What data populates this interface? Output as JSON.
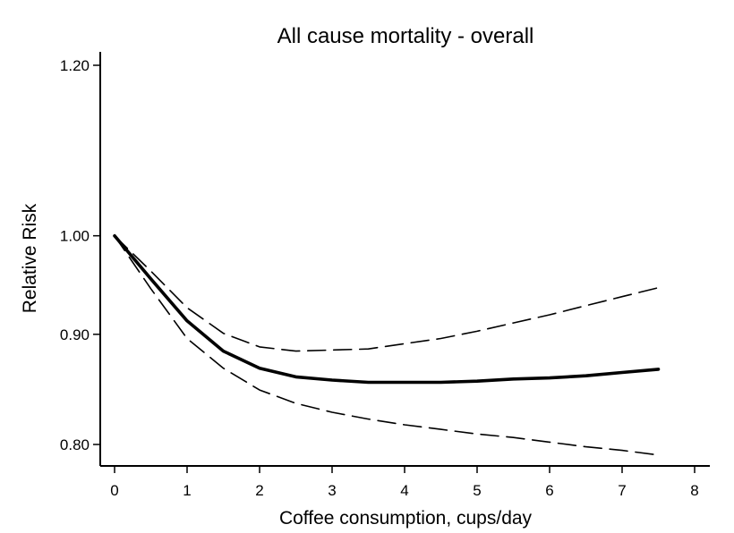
{
  "chart_data": {
    "type": "line",
    "title": "All cause mortality - overall",
    "xlabel": "Coffee consumption, cups/day",
    "ylabel": "Relative Risk",
    "xlim": [
      0,
      8
    ],
    "ylim": [
      0.8,
      1.2
    ],
    "y_scale": "log",
    "x_ticks": [
      {
        "value": 0,
        "label": "0"
      },
      {
        "value": 1,
        "label": "1"
      },
      {
        "value": 2,
        "label": "2"
      },
      {
        "value": 3,
        "label": "3"
      },
      {
        "value": 4,
        "label": "4"
      },
      {
        "value": 5,
        "label": "5"
      },
      {
        "value": 6,
        "label": "6"
      },
      {
        "value": 7,
        "label": "7"
      },
      {
        "value": 8,
        "label": "8"
      }
    ],
    "y_ticks": [
      {
        "value": 0.8,
        "label": "0.80"
      },
      {
        "value": 0.9,
        "label": "0.90"
      },
      {
        "value": 1.0,
        "label": "1.00"
      },
      {
        "value": 1.2,
        "label": "1.20"
      }
    ],
    "grid": false,
    "legend": "none",
    "series": [
      {
        "style": "solid-thick",
        "color": "#000000",
        "x": [
          0,
          0.5,
          1,
          1.5,
          2,
          2.5,
          3,
          3.5,
          4,
          4.5,
          5,
          5.5,
          6,
          6.5,
          7,
          7.5
        ],
        "y": [
          1.0,
          0.955,
          0.913,
          0.884,
          0.868,
          0.86,
          0.857,
          0.855,
          0.855,
          0.855,
          0.856,
          0.858,
          0.859,
          0.861,
          0.864,
          0.867
        ]
      },
      {
        "style": "dashed",
        "color": "#000000",
        "x": [
          0,
          0.5,
          1,
          1.5,
          2,
          2.5,
          3,
          3.5,
          4,
          4.5,
          5,
          5.5,
          6,
          6.5,
          7,
          7.5
        ],
        "y": [
          1.0,
          0.963,
          0.926,
          0.901,
          0.888,
          0.884,
          0.885,
          0.886,
          0.891,
          0.896,
          0.903,
          0.911,
          0.919,
          0.928,
          0.937,
          0.946
        ]
      },
      {
        "style": "dashed",
        "color": "#000000",
        "x": [
          0,
          0.5,
          1,
          1.5,
          2,
          2.5,
          3,
          3.5,
          4,
          4.5,
          5,
          5.5,
          6,
          6.5,
          7,
          7.5
        ],
        "y": [
          1.0,
          0.945,
          0.896,
          0.868,
          0.848,
          0.836,
          0.828,
          0.822,
          0.817,
          0.813,
          0.809,
          0.806,
          0.802,
          0.798,
          0.795,
          0.791
        ]
      }
    ]
  }
}
